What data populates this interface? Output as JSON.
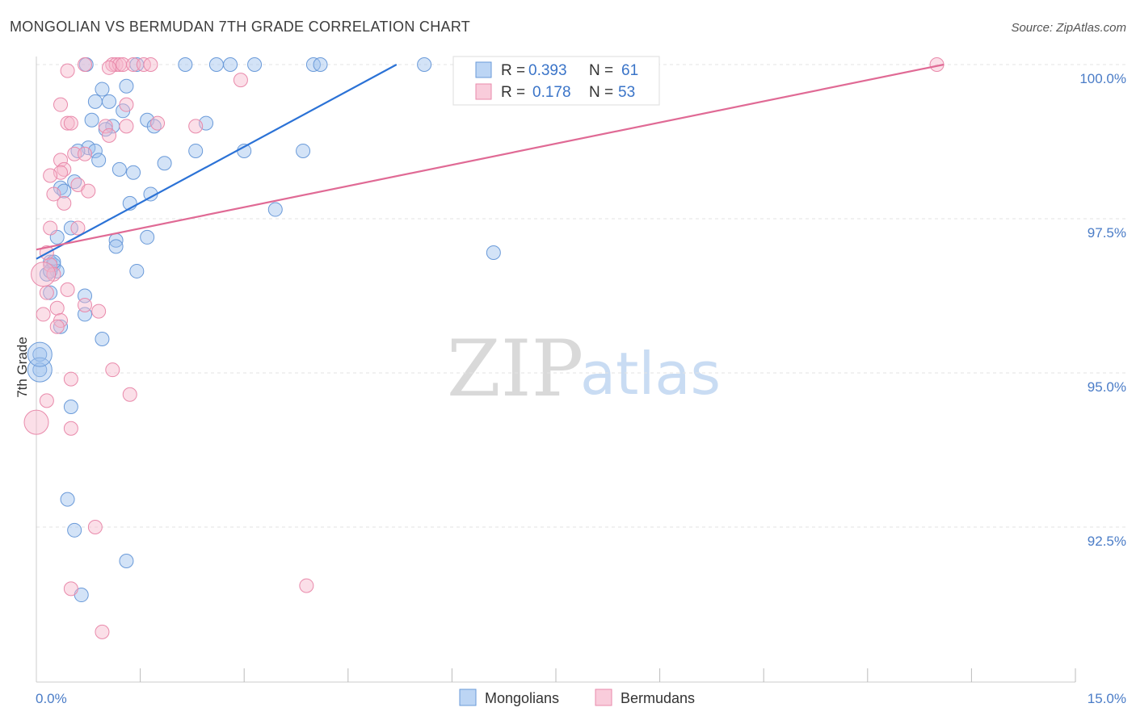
{
  "chart_data": {
    "type": "scatter",
    "title": "MONGOLIAN VS BERMUDAN 7TH GRADE CORRELATION CHART",
    "source": "Source: ZipAtlas.com",
    "xlabel": "",
    "ylabel": "7th Grade",
    "xlim": [
      0,
      15
    ],
    "ylim": [
      90.0,
      100.4
    ],
    "x_ticks_labeled": [
      {
        "value": 0,
        "label": "0.0%"
      },
      {
        "value": 15,
        "label": "15.0%"
      }
    ],
    "x_minor_ticks": [
      1.5,
      3.0,
      4.5,
      6.0,
      7.5,
      9.0,
      10.5,
      12.0,
      13.5
    ],
    "y_ticks": [
      {
        "value": 100.0,
        "label": "100.0%"
      },
      {
        "value": 97.5,
        "label": "97.5%"
      },
      {
        "value": 95.0,
        "label": "95.0%"
      },
      {
        "value": 92.5,
        "label": "92.5%"
      }
    ],
    "grid": true,
    "watermark": {
      "zip": "ZIP",
      "atlas": "atlas"
    },
    "legend_position": "top-center",
    "series": [
      {
        "name": "Mongolians",
        "color": "#9dc1ee",
        "stroke": "#6a9ad9",
        "line_color": "#2b72d6",
        "R": "0.393",
        "N": "61",
        "trend": [
          [
            0.0,
            96.85
          ],
          [
            5.2,
            100.0
          ]
        ],
        "points": [
          [
            0.72,
            100.0
          ],
          [
            1.45,
            100.0
          ],
          [
            2.15,
            100.0
          ],
          [
            2.6,
            100.0
          ],
          [
            2.8,
            100.0
          ],
          [
            3.15,
            100.0
          ],
          [
            4.0,
            100.0
          ],
          [
            4.1,
            100.0
          ],
          [
            5.6,
            100.0
          ],
          [
            0.95,
            99.6
          ],
          [
            1.3,
            99.65
          ],
          [
            0.85,
            99.4
          ],
          [
            1.05,
            99.4
          ],
          [
            1.25,
            99.25
          ],
          [
            0.8,
            99.1
          ],
          [
            1.6,
            99.1
          ],
          [
            2.45,
            99.05
          ],
          [
            1.1,
            99.0
          ],
          [
            1.0,
            98.95
          ],
          [
            1.7,
            99.0
          ],
          [
            0.75,
            98.65
          ],
          [
            0.6,
            98.6
          ],
          [
            0.85,
            98.6
          ],
          [
            2.3,
            98.6
          ],
          [
            3.0,
            98.6
          ],
          [
            3.85,
            98.6
          ],
          [
            0.9,
            98.45
          ],
          [
            1.85,
            98.4
          ],
          [
            1.2,
            98.3
          ],
          [
            1.4,
            98.25
          ],
          [
            0.55,
            98.1
          ],
          [
            0.35,
            98.0
          ],
          [
            0.4,
            97.95
          ],
          [
            1.65,
            97.9
          ],
          [
            1.35,
            97.75
          ],
          [
            3.45,
            97.65
          ],
          [
            0.5,
            97.35
          ],
          [
            0.3,
            97.2
          ],
          [
            1.6,
            97.2
          ],
          [
            1.15,
            97.15
          ],
          [
            1.15,
            97.05
          ],
          [
            6.6,
            96.95
          ],
          [
            0.2,
            96.8
          ],
          [
            0.25,
            96.75
          ],
          [
            0.3,
            96.65
          ],
          [
            0.15,
            96.6
          ],
          [
            1.45,
            96.65
          ],
          [
            0.2,
            96.3
          ],
          [
            0.7,
            96.25
          ],
          [
            0.7,
            95.95
          ],
          [
            0.35,
            95.75
          ],
          [
            0.95,
            95.55
          ],
          [
            0.05,
            95.3
          ],
          [
            0.05,
            95.05
          ],
          [
            0.5,
            94.45
          ],
          [
            0.45,
            92.95
          ],
          [
            0.55,
            92.45
          ],
          [
            1.3,
            91.95
          ],
          [
            0.65,
            91.4
          ],
          [
            0.2,
            96.65
          ],
          [
            0.25,
            96.8
          ]
        ],
        "large_points": [
          [
            0.05,
            95.05
          ],
          [
            0.05,
            95.3
          ]
        ]
      },
      {
        "name": "Bermudans",
        "color": "#f6b9cc",
        "stroke": "#e98aab",
        "line_color": "#e06a95",
        "R": "0.178",
        "N": "53",
        "trend": [
          [
            0.0,
            97.0
          ],
          [
            13.1,
            100.0
          ]
        ],
        "points": [
          [
            0.7,
            100.0
          ],
          [
            1.1,
            100.0
          ],
          [
            1.15,
            100.0
          ],
          [
            1.2,
            100.0
          ],
          [
            1.25,
            100.0
          ],
          [
            1.4,
            100.0
          ],
          [
            1.55,
            100.0
          ],
          [
            1.65,
            100.0
          ],
          [
            0.45,
            99.9
          ],
          [
            1.05,
            99.95
          ],
          [
            2.95,
            99.75
          ],
          [
            0.35,
            99.35
          ],
          [
            1.3,
            99.35
          ],
          [
            0.45,
            99.05
          ],
          [
            0.5,
            99.05
          ],
          [
            1.0,
            99.0
          ],
          [
            1.3,
            99.0
          ],
          [
            1.75,
            99.05
          ],
          [
            2.3,
            99.0
          ],
          [
            1.05,
            98.85
          ],
          [
            0.55,
            98.55
          ],
          [
            0.35,
            98.45
          ],
          [
            0.7,
            98.55
          ],
          [
            0.4,
            98.3
          ],
          [
            0.35,
            98.25
          ],
          [
            0.2,
            98.2
          ],
          [
            0.6,
            98.05
          ],
          [
            0.25,
            97.9
          ],
          [
            0.75,
            97.95
          ],
          [
            0.4,
            97.75
          ],
          [
            0.2,
            97.35
          ],
          [
            0.6,
            97.35
          ],
          [
            0.15,
            96.95
          ],
          [
            0.2,
            96.75
          ],
          [
            0.25,
            96.6
          ],
          [
            0.45,
            96.35
          ],
          [
            0.15,
            96.3
          ],
          [
            0.3,
            96.05
          ],
          [
            0.7,
            96.1
          ],
          [
            0.9,
            96.0
          ],
          [
            0.1,
            95.95
          ],
          [
            0.35,
            95.85
          ],
          [
            0.3,
            95.75
          ],
          [
            1.1,
            95.05
          ],
          [
            0.5,
            94.9
          ],
          [
            1.35,
            94.65
          ],
          [
            0.15,
            94.55
          ],
          [
            0.5,
            94.1
          ],
          [
            0.85,
            92.5
          ],
          [
            0.5,
            91.5
          ],
          [
            3.9,
            91.55
          ],
          [
            0.95,
            90.8
          ],
          [
            13.0,
            100.0
          ]
        ],
        "large_points": [
          [
            0.0,
            94.2
          ],
          [
            0.1,
            96.6
          ]
        ]
      }
    ]
  }
}
